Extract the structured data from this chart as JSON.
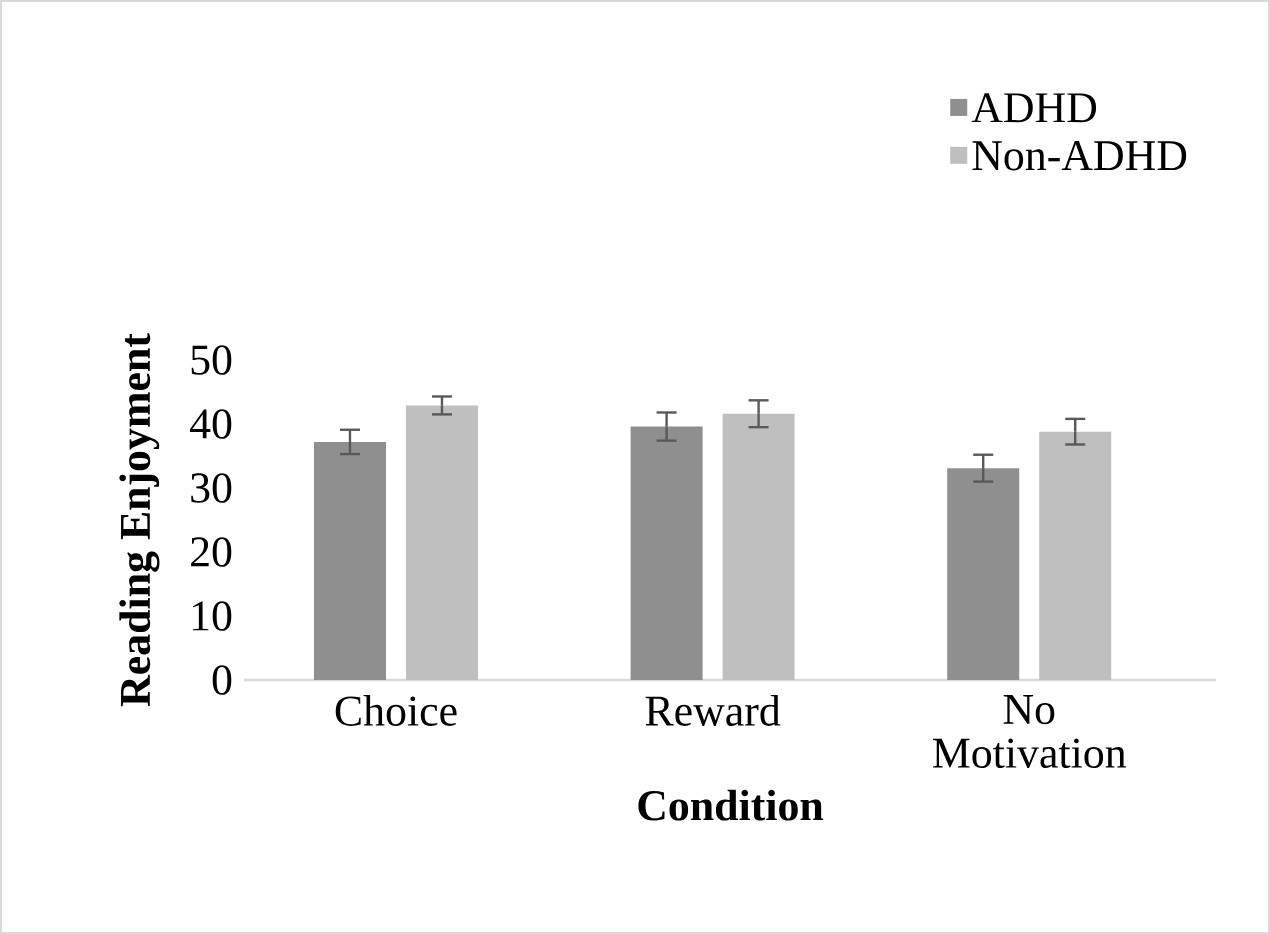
{
  "chart_data": {
    "type": "bar",
    "xlabel": "Condition",
    "ylabel": "Reading Enjoyment",
    "categories": [
      "Choice",
      "Reward",
      "No Motivation"
    ],
    "series": [
      {
        "name": "ADHD",
        "color": "#8f8f8f",
        "values": [
          37.2,
          39.6,
          33.1
        ],
        "errors": [
          1.9,
          2.2,
          2.1
        ]
      },
      {
        "name": "Non-ADHD",
        "color": "#bfbfbf",
        "values": [
          42.9,
          41.6,
          38.8
        ],
        "errors": [
          1.4,
          2.1,
          2.0
        ]
      }
    ],
    "ylim": [
      0,
      50
    ],
    "yticks": [
      0,
      10,
      20,
      30,
      40,
      50
    ],
    "legend": "top right"
  }
}
